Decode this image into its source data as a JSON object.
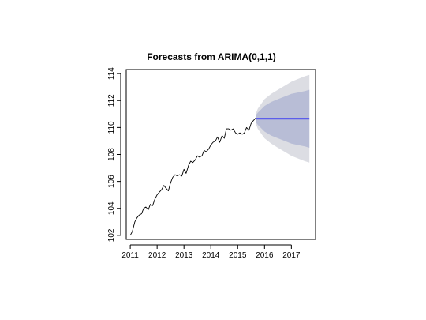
{
  "chart_data": {
    "type": "line",
    "title": "Forecasts from ARIMA(0,1,1)",
    "xlabel": "",
    "ylabel": "",
    "xlim": [
      2010.85,
      2017.9
    ],
    "ylim": [
      101.7,
      114.3
    ],
    "x_ticks": [
      2011,
      2012,
      2013,
      2014,
      2015,
      2016,
      2017
    ],
    "y_ticks": [
      102,
      104,
      106,
      108,
      110,
      112,
      114
    ],
    "grid": false,
    "colors": {
      "history": "#000000",
      "forecast": "#0000ff",
      "band_80": "#b8bdd6",
      "band_95": "#dcdde3"
    },
    "series": [
      {
        "kind": "history",
        "x": [
          2011.0,
          2011.08,
          2011.17,
          2011.25,
          2011.33,
          2011.42,
          2011.5,
          2011.58,
          2011.67,
          2011.75,
          2011.83,
          2011.92,
          2012.0,
          2012.08,
          2012.17,
          2012.25,
          2012.33,
          2012.42,
          2012.5,
          2012.58,
          2012.67,
          2012.75,
          2012.83,
          2012.92,
          2013.0,
          2013.08,
          2013.17,
          2013.25,
          2013.33,
          2013.42,
          2013.5,
          2013.58,
          2013.67,
          2013.75,
          2013.83,
          2013.92,
          2014.0,
          2014.08,
          2014.17,
          2014.25,
          2014.33,
          2014.42,
          2014.5,
          2014.58,
          2014.67,
          2014.75,
          2014.83,
          2014.92,
          2015.0,
          2015.08,
          2015.17,
          2015.25,
          2015.33,
          2015.42,
          2015.5,
          2015.58,
          2015.67
        ],
        "values": [
          102.0,
          102.3,
          103.0,
          103.3,
          103.5,
          103.6,
          104.0,
          104.1,
          103.9,
          104.3,
          104.2,
          104.7,
          105.0,
          105.2,
          105.4,
          105.7,
          105.5,
          105.3,
          105.9,
          106.3,
          106.5,
          106.4,
          106.5,
          106.4,
          106.9,
          106.6,
          107.2,
          107.5,
          107.4,
          107.6,
          107.9,
          107.8,
          107.9,
          108.3,
          108.2,
          108.4,
          108.7,
          108.9,
          109.0,
          109.3,
          108.9,
          109.4,
          109.2,
          109.9,
          109.9,
          109.8,
          109.9,
          109.6,
          109.5,
          109.6,
          109.5,
          109.6,
          110.0,
          109.8,
          110.3,
          110.5,
          110.7
        ]
      },
      {
        "kind": "forecast",
        "x": [
          2015.67,
          2017.67
        ],
        "values": [
          110.65,
          110.65
        ]
      }
    ],
    "intervals": {
      "x": [
        2015.67,
        2015.75,
        2016.0,
        2016.25,
        2016.5,
        2016.75,
        2017.0,
        2017.25,
        2017.5,
        2017.67
      ],
      "lo95": [
        110.3,
        109.9,
        109.2,
        108.8,
        108.5,
        108.2,
        107.9,
        107.7,
        107.5,
        107.4
      ],
      "hi95": [
        111.0,
        111.4,
        112.1,
        112.5,
        112.8,
        113.1,
        113.4,
        113.6,
        113.8,
        113.9
      ],
      "lo80": [
        110.4,
        110.2,
        109.7,
        109.4,
        109.2,
        109.0,
        108.8,
        108.7,
        108.6,
        108.5
      ],
      "hi80": [
        110.9,
        111.1,
        111.6,
        111.9,
        112.1,
        112.3,
        112.5,
        112.6,
        112.7,
        112.8
      ]
    }
  }
}
